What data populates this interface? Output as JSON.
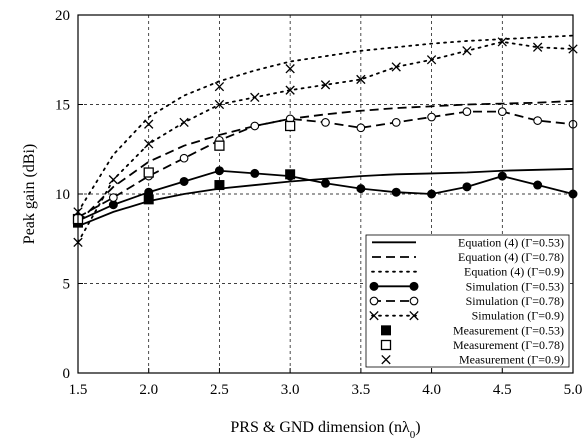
{
  "chart_data": {
    "type": "line",
    "xlabel": "PRS & GND dimension (nλ0)",
    "ylabel": "Peak gain (dBi)",
    "xlim": [
      1.5,
      5.0
    ],
    "ylim": [
      0,
      20
    ],
    "x_ticks": [
      "1.5",
      "2.0",
      "2.5",
      "3.0",
      "3.5",
      "4.0",
      "4.5",
      "5.0"
    ],
    "y_ticks": [
      "0",
      "5",
      "10",
      "15",
      "20"
    ],
    "grid": true,
    "legend_position": "bottom-right",
    "series": [
      {
        "name": "Equation (4) (Γ=0.53)",
        "style": "solid",
        "marker": "none",
        "x": [
          1.5,
          1.75,
          2.0,
          2.25,
          2.5,
          2.75,
          3.0,
          3.25,
          3.5,
          3.75,
          4.0,
          4.25,
          4.5,
          4.75,
          5.0
        ],
        "y": [
          8.2,
          9.0,
          9.6,
          10.0,
          10.3,
          10.5,
          10.7,
          10.85,
          11.0,
          11.1,
          11.15,
          11.2,
          11.3,
          11.35,
          11.4
        ]
      },
      {
        "name": "Equation (4) (Γ=0.78)",
        "style": "dashed",
        "marker": "none",
        "x": [
          1.5,
          1.75,
          2.0,
          2.25,
          2.5,
          2.75,
          3.0,
          3.25,
          3.5,
          3.75,
          4.0,
          4.25,
          4.5,
          4.75,
          5.0
        ],
        "y": [
          8.4,
          10.4,
          11.8,
          12.7,
          13.3,
          13.8,
          14.2,
          14.45,
          14.65,
          14.8,
          14.9,
          15.0,
          15.05,
          15.1,
          15.2
        ]
      },
      {
        "name": "Equation (4) (Γ=0.9)",
        "style": "dotted",
        "marker": "none",
        "x": [
          1.5,
          1.75,
          2.0,
          2.25,
          2.5,
          2.75,
          3.0,
          3.25,
          3.5,
          3.75,
          4.0,
          4.25,
          4.5,
          4.75,
          5.0
        ],
        "y": [
          9.0,
          12.2,
          14.3,
          15.5,
          16.3,
          16.9,
          17.4,
          17.7,
          18.0,
          18.2,
          18.4,
          18.55,
          18.65,
          18.75,
          18.85
        ]
      },
      {
        "name": "Simulation (Γ=0.53)",
        "style": "solid",
        "marker": "filled-circle",
        "x": [
          1.5,
          1.75,
          2.0,
          2.25,
          2.5,
          2.75,
          3.0,
          3.25,
          3.5,
          3.75,
          4.0,
          4.25,
          4.5,
          4.75,
          5.0
        ],
        "y": [
          8.5,
          9.4,
          10.1,
          10.7,
          11.3,
          11.15,
          11.0,
          10.6,
          10.3,
          10.1,
          10.0,
          10.4,
          11.0,
          10.5,
          10.0
        ]
      },
      {
        "name": "Simulation (Γ=0.78)",
        "style": "dashed",
        "marker": "open-circle",
        "x": [
          1.5,
          1.75,
          2.0,
          2.25,
          2.5,
          2.75,
          3.0,
          3.25,
          3.5,
          3.75,
          4.0,
          4.25,
          4.5,
          4.75,
          5.0
        ],
        "y": [
          8.7,
          9.8,
          11.0,
          12.0,
          13.0,
          13.8,
          14.2,
          14.0,
          13.7,
          14.0,
          14.3,
          14.6,
          14.6,
          14.1,
          13.9
        ]
      },
      {
        "name": "Simulation (Γ=0.9)",
        "style": "dotted",
        "marker": "cross",
        "x": [
          1.5,
          1.75,
          2.0,
          2.25,
          2.5,
          2.75,
          3.0,
          3.25,
          3.5,
          3.75,
          4.0,
          4.25,
          4.5,
          4.75,
          5.0
        ],
        "y": [
          7.3,
          10.8,
          12.8,
          14.0,
          15.0,
          15.4,
          15.8,
          16.1,
          16.4,
          17.1,
          17.5,
          18.0,
          18.5,
          18.2,
          18.1
        ]
      },
      {
        "name": "Measurement (Γ=0.53)",
        "style": "none",
        "marker": "filled-square",
        "x": [
          1.5,
          2.0,
          2.5,
          3.0
        ],
        "y": [
          8.4,
          9.7,
          10.5,
          11.1
        ]
      },
      {
        "name": "Measurement (Γ=0.78)",
        "style": "none",
        "marker": "open-square",
        "x": [
          1.5,
          2.0,
          2.5,
          3.0
        ],
        "y": [
          8.6,
          11.2,
          12.7,
          13.8
        ]
      },
      {
        "name": "Measurement (Γ=0.9)",
        "style": "none",
        "marker": "cross",
        "x": [
          1.5,
          2.0,
          2.5,
          3.0
        ],
        "y": [
          9.0,
          13.9,
          16.0,
          17.0
        ]
      }
    ]
  }
}
